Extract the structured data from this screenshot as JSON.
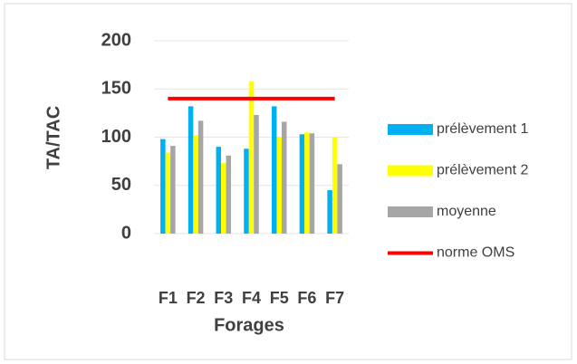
{
  "chart_data": {
    "type": "bar",
    "y_label": "TA/TAC",
    "x_label": "Forages",
    "categories": [
      "F1",
      "F2",
      "F3",
      "F4",
      "F5",
      "F6",
      "F7"
    ],
    "series": [
      {
        "name": "prélèvement 1",
        "color": "#00b0f0",
        "values": [
          98,
          132,
          90,
          88,
          132,
          103,
          45
        ]
      },
      {
        "name": "prélèvement 2",
        "color": "#ffff00",
        "values": [
          84,
          102,
          73,
          158,
          100,
          105,
          100
        ]
      },
      {
        "name": "moyenne",
        "color": "#a6a6a6",
        "values": [
          91,
          117,
          81,
          123,
          116,
          104,
          72
        ]
      },
      {
        "name": "norme OMS",
        "color": "#ff0000",
        "type": "line",
        "values": [
          140,
          140,
          140,
          140,
          140,
          140,
          140
        ]
      }
    ],
    "ylim": [
      0,
      200
    ],
    "yticks": [
      0,
      50,
      100,
      150,
      200
    ],
    "grid": true,
    "legend": "right"
  }
}
